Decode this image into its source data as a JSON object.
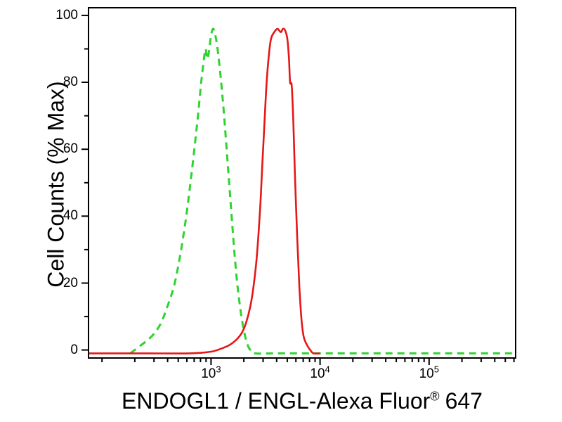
{
  "figure": {
    "background": "#ffffff"
  },
  "chart_data": {
    "type": "line",
    "subtype": "flow-cytometry-histogram-overlay",
    "title": "",
    "ylabel": "Cell Counts (% Max)",
    "xlabel": {
      "main": "ENDOGL1 / ENGL-Alexa Fluor",
      "registered_mark": "®",
      "suffix": "647"
    },
    "x_scale": "log10",
    "x_domain_log10": [
      1.87,
      5.8
    ],
    "y_domain": [
      -2.6,
      102.5
    ],
    "grid": "off",
    "legend": "none",
    "frame_color": "#000000",
    "tick_color": "#000000",
    "y_ticks": {
      "major": [
        {
          "value": 0,
          "label": "0"
        },
        {
          "value": 20,
          "label": "20"
        },
        {
          "value": 40,
          "label": "40"
        },
        {
          "value": 60,
          "label": "60"
        },
        {
          "value": 80,
          "label": "80"
        },
        {
          "value": 100,
          "label": "100"
        }
      ],
      "minor": [
        10,
        30,
        50,
        70,
        90
      ]
    },
    "x_ticks_major": [
      {
        "log10": 3,
        "base": "10",
        "exp": "3"
      },
      {
        "log10": 4,
        "base": "10",
        "exp": "4"
      },
      {
        "log10": 5,
        "base": "10",
        "exp": "5"
      }
    ],
    "series": [
      {
        "id": "green-dashed",
        "style": "dashed",
        "color": "#2fd32f",
        "stroke_width": 3,
        "dash": [
          10,
          7
        ],
        "points_log10x_pct": [
          [
            2.26,
            -1
          ],
          [
            2.3,
            0
          ],
          [
            2.36,
            1.5
          ],
          [
            2.42,
            3
          ],
          [
            2.48,
            5
          ],
          [
            2.54,
            8
          ],
          [
            2.6,
            13
          ],
          [
            2.66,
            19
          ],
          [
            2.71,
            27
          ],
          [
            2.76,
            37
          ],
          [
            2.8,
            47
          ],
          [
            2.84,
            58
          ],
          [
            2.88,
            70
          ],
          [
            2.91,
            80
          ],
          [
            2.935,
            87
          ],
          [
            2.95,
            90
          ],
          [
            2.965,
            87
          ],
          [
            2.98,
            89
          ],
          [
            3.0,
            94
          ],
          [
            3.02,
            96
          ],
          [
            3.04,
            94
          ],
          [
            3.06,
            90
          ],
          [
            3.09,
            81
          ],
          [
            3.12,
            70
          ],
          [
            3.15,
            57
          ],
          [
            3.18,
            44
          ],
          [
            3.21,
            31
          ],
          [
            3.24,
            20
          ],
          [
            3.27,
            12
          ],
          [
            3.3,
            6
          ],
          [
            3.33,
            2
          ],
          [
            3.36,
            0
          ],
          [
            3.4,
            -1
          ],
          [
            3.6,
            -1
          ],
          [
            3.9,
            -1
          ],
          [
            4.2,
            -1
          ],
          [
            4.6,
            -1
          ],
          [
            5.0,
            -1
          ],
          [
            5.4,
            -1
          ],
          [
            5.78,
            -1
          ]
        ]
      },
      {
        "id": "red-solid",
        "style": "solid",
        "color": "#e51717",
        "stroke_width": 2.6,
        "dash": null,
        "points_log10x_pct": [
          [
            1.88,
            -1
          ],
          [
            2.4,
            -1
          ],
          [
            2.8,
            -1
          ],
          [
            3.0,
            -0.5
          ],
          [
            3.1,
            0.5
          ],
          [
            3.17,
            1.5
          ],
          [
            3.23,
            3
          ],
          [
            3.28,
            5
          ],
          [
            3.32,
            8
          ],
          [
            3.36,
            13
          ],
          [
            3.39,
            19
          ],
          [
            3.42,
            28
          ],
          [
            3.45,
            42
          ],
          [
            3.47,
            55
          ],
          [
            3.49,
            68
          ],
          [
            3.51,
            80
          ],
          [
            3.53,
            88
          ],
          [
            3.55,
            93
          ],
          [
            3.58,
            95
          ],
          [
            3.61,
            96
          ],
          [
            3.64,
            95
          ],
          [
            3.66,
            96
          ],
          [
            3.68,
            95.5
          ],
          [
            3.7,
            93
          ],
          [
            3.715,
            87
          ],
          [
            3.725,
            80
          ],
          [
            3.74,
            79
          ],
          [
            3.755,
            68
          ],
          [
            3.77,
            52
          ],
          [
            3.79,
            34
          ],
          [
            3.81,
            19
          ],
          [
            3.83,
            9
          ],
          [
            3.85,
            4
          ],
          [
            3.88,
            1.5
          ],
          [
            3.91,
            0
          ],
          [
            3.94,
            -1
          ],
          [
            4.0,
            -1
          ]
        ]
      }
    ]
  }
}
